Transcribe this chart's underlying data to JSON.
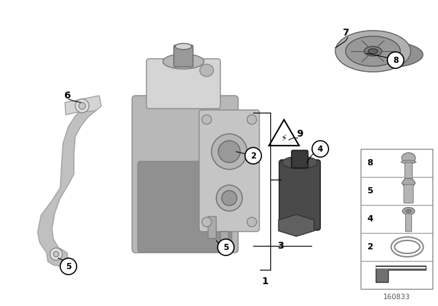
{
  "bg_color": "#ffffff",
  "fig_width": 6.4,
  "fig_height": 4.48,
  "dpi": 100,
  "diagram_number": "160833",
  "circle_color": "#000000",
  "circle_fill": "#ffffff",
  "legend_border": "#aaaaaa",
  "legend_bg": "#ffffff",
  "pump_color": "#b8b8b8",
  "pump_shadow": "#909090",
  "pump_light": "#d5d5d5",
  "bracket_color": "#c0c0c0",
  "gear_color": "#a8a8a8",
  "sensor_color": "#555555",
  "sensor_hex": "#606060"
}
